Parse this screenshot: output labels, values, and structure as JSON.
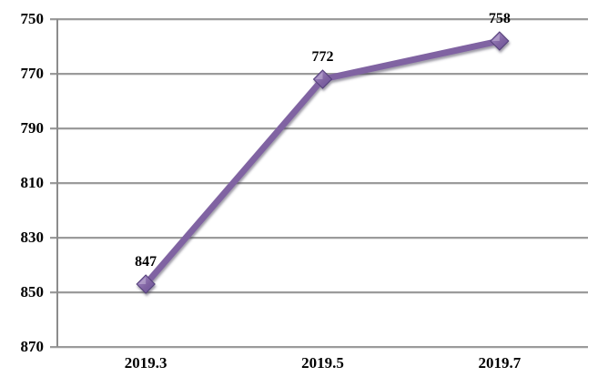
{
  "chart_data": {
    "type": "line",
    "title": "",
    "xlabel": "",
    "ylabel": "",
    "categories": [
      "2019.3",
      "2019.5",
      "2019.7"
    ],
    "series": [
      {
        "name": "",
        "values": [
          847,
          772,
          758
        ]
      }
    ],
    "data_labels": [
      "847",
      "772",
      "758"
    ],
    "yticks": [
      750,
      770,
      790,
      810,
      830,
      850,
      870
    ],
    "ylim": [
      750,
      870
    ],
    "y_axis_inverted": true,
    "grid": true,
    "legend": "none",
    "marker": "diamond",
    "colors": {
      "line": "#8064A2",
      "marker_light": "#A98FCB",
      "marker_dark": "#6A4F99",
      "marker_edge": "#54407A",
      "grid": "#9B9B9B",
      "axis": "#8C8C8C",
      "text": "#000000",
      "background": "#FFFFFF"
    }
  }
}
